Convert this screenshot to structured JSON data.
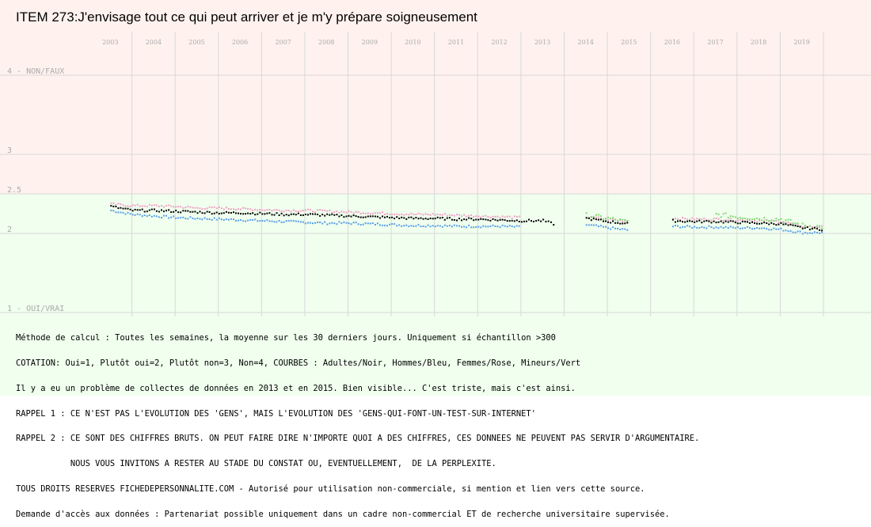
{
  "title": "ITEM 273:J'envisage tout ce qui peut arriver et je m'y prépare soigneusement",
  "colors": {
    "upper_zone": "#fff2ee",
    "lower_zone": "#f0ffee",
    "grid": "#d8d8d8",
    "adults": "#000000",
    "men": "#5a9ee8",
    "women": "#f0a0c8",
    "minors": "#80d870"
  },
  "chart_data": {
    "type": "scatter",
    "x_ticks": [
      "2003",
      "2004",
      "2005",
      "2006",
      "2007",
      "2008",
      "2009",
      "2010",
      "2011",
      "2012",
      "2013",
      "2014",
      "2015",
      "2016",
      "2017",
      "2018",
      "2019"
    ],
    "xlim": [
      2002.5,
      2020.6
    ],
    "ylim": [
      1,
      4
    ],
    "y_ticks": [
      {
        "value": 4,
        "label": "4 - NON/FAUX"
      },
      {
        "value": 3,
        "label": "3"
      },
      {
        "value": 2.5,
        "label": "2.5"
      },
      {
        "value": 2,
        "label": "2"
      },
      {
        "value": 1,
        "label": "1 - OUI/VRAI"
      }
    ],
    "series": [
      {
        "name": "Adultes",
        "color": "#000000",
        "x": [
          2003.0,
          2003.5,
          2004.0,
          2004.5,
          2005.0,
          2005.5,
          2006.0,
          2006.5,
          2007.0,
          2007.5,
          2008.0,
          2008.5,
          2009.0,
          2009.5,
          2010.0,
          2010.5,
          2011.0,
          2011.5,
          2012.0,
          2012.5,
          2013.0,
          2013.3,
          2014.0,
          2014.5,
          2015.0,
          2016.0,
          2016.5,
          2017.0,
          2017.5,
          2018.0,
          2018.5,
          2019.0,
          2019.5
        ],
        "y": [
          2.35,
          2.3,
          2.3,
          2.29,
          2.28,
          2.27,
          2.27,
          2.26,
          2.25,
          2.25,
          2.24,
          2.23,
          2.22,
          2.21,
          2.2,
          2.2,
          2.19,
          2.19,
          2.18,
          2.17,
          2.17,
          2.12,
          2.2,
          2.16,
          2.13,
          2.17,
          2.16,
          2.16,
          2.15,
          2.14,
          2.13,
          2.08,
          2.06
        ]
      },
      {
        "name": "Hommes",
        "color": "#5a9ee8",
        "x": [
          2003.0,
          2003.5,
          2004.0,
          2004.5,
          2005.0,
          2005.5,
          2006.0,
          2006.5,
          2007.0,
          2007.5,
          2008.0,
          2008.5,
          2009.0,
          2009.5,
          2010.0,
          2010.5,
          2011.0,
          2011.5,
          2012.0,
          2012.5,
          2014.0,
          2014.5,
          2015.0,
          2016.0,
          2016.5,
          2017.0,
          2017.5,
          2018.0,
          2018.5,
          2019.0,
          2019.5
        ],
        "y": [
          2.3,
          2.25,
          2.23,
          2.21,
          2.2,
          2.19,
          2.18,
          2.17,
          2.16,
          2.15,
          2.14,
          2.14,
          2.13,
          2.12,
          2.11,
          2.11,
          2.1,
          2.1,
          2.1,
          2.09,
          2.12,
          2.08,
          2.05,
          2.1,
          2.09,
          2.09,
          2.08,
          2.08,
          2.06,
          2.02,
          2.02
        ]
      },
      {
        "name": "Femmes",
        "color": "#f0a0c8",
        "x": [
          2003.0,
          2003.5,
          2004.0,
          2004.5,
          2005.0,
          2005.5,
          2006.0,
          2006.5,
          2007.0,
          2007.5,
          2008.0,
          2008.5,
          2009.0,
          2009.5,
          2010.0,
          2010.5,
          2011.0,
          2011.5,
          2012.0,
          2012.5,
          2014.0,
          2014.5,
          2015.0,
          2016.0,
          2016.5,
          2017.0,
          2017.5,
          2018.0,
          2018.5,
          2019.0,
          2019.5
        ],
        "y": [
          2.38,
          2.36,
          2.36,
          2.35,
          2.33,
          2.33,
          2.32,
          2.31,
          2.3,
          2.3,
          2.29,
          2.28,
          2.27,
          2.26,
          2.25,
          2.25,
          2.24,
          2.23,
          2.22,
          2.21,
          2.22,
          2.19,
          2.16,
          2.2,
          2.19,
          2.19,
          2.18,
          2.17,
          2.16,
          2.1,
          2.09
        ]
      },
      {
        "name": "Mineurs",
        "color": "#80d870",
        "x": [
          2003.0,
          2004.0,
          2005.0,
          2006.0,
          2007.0,
          2008.0,
          2009.0,
          2010.0,
          2011.0,
          2012.0,
          2014.0,
          2014.5,
          2015.0,
          2016.0,
          2017.0,
          2017.5,
          2018.0,
          2018.5,
          2019.0,
          2019.5
        ],
        "y": [
          2.4,
          2.33,
          2.31,
          2.3,
          2.29,
          2.28,
          2.27,
          2.26,
          2.26,
          2.25,
          2.24,
          2.2,
          2.15,
          2.22,
          2.25,
          2.22,
          2.2,
          2.19,
          2.11,
          2.09
        ]
      }
    ],
    "gaps": [
      [
        2013.35,
        2013.8
      ],
      [
        2015.05,
        2016.0
      ]
    ],
    "grid": true,
    "legend": "none"
  },
  "notes": [
    "Méthode de calcul : Toutes les semaines, la moyenne sur les 30 derniers jours. Uniquement si échantillon >300",
    "COTATION: Oui=1, Plutôt oui=2, Plutôt non=3, Non=4, COURBES : Adultes/Noir, Hommes/Bleu, Femmes/Rose, Mineurs/Vert",
    "Il y a eu un problème de collectes de données en 2013 et en 2015. Bien visible... C'est triste, mais c'est ainsi.",
    "RAPPEL 1 : CE N'EST PAS L'EVOLUTION DES 'GENS', MAIS L'EVOLUTION DES 'GENS-QUI-FONT-UN-TEST-SUR-INTERNET'",
    "RAPPEL 2 : CE SONT DES CHIFFRES BRUTS. ON PEUT FAIRE DIRE N'IMPORTE QUOI A DES CHIFFRES, CES DONNEES NE PEUVENT PAS SERVIR D'ARGUMENTAIRE.",
    "           NOUS VOUS INVITONS A RESTER AU STADE DU CONSTAT OU, EVENTUELLEMENT,  DE LA PERPLEXITE.",
    "TOUS DROITS RESERVES FICHEDEPERSONNALITE.COM - Autorisé pour utilisation non-commerciale, si mention et lien vers cette source.",
    "Demande d'accès aux données : Partenariat possible uniquement dans un cadre non-commercial ET de recherche universitaire supervisée."
  ]
}
